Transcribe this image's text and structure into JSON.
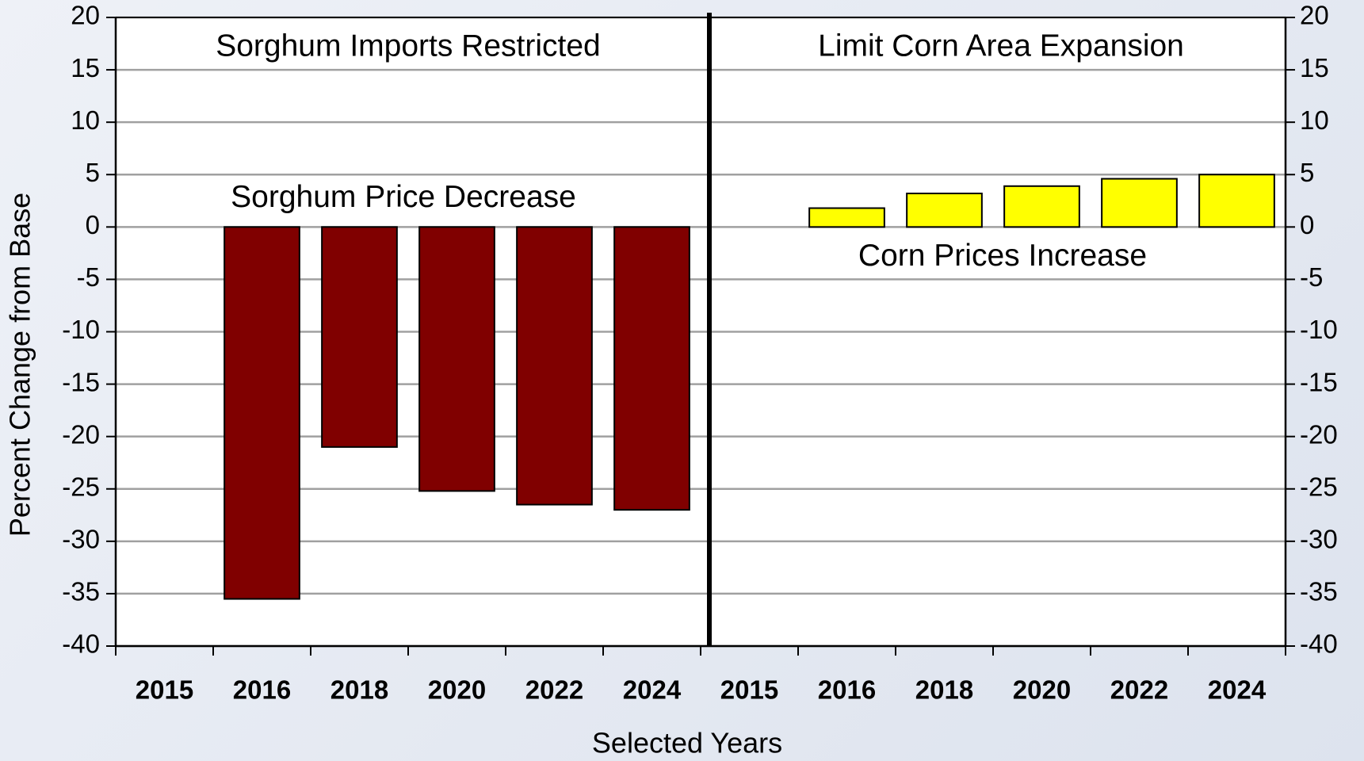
{
  "chart_data": {
    "type": "bar",
    "y_label": "Percent Change from Base",
    "x_label": "Selected Years",
    "ylim": [
      -40,
      20
    ],
    "yticks": [
      -40,
      -35,
      -30,
      -25,
      -20,
      -15,
      -10,
      -5,
      0,
      5,
      10,
      15,
      20
    ],
    "y2lim": [
      -40,
      20
    ],
    "y2ticks": [
      -40,
      -35,
      -30,
      -25,
      -20,
      -15,
      -10,
      -5,
      0,
      5,
      10,
      15,
      20
    ],
    "grid": true,
    "panels": [
      {
        "title": "Sorghum Imports Restricted",
        "annotation": "Sorghum Price Decrease",
        "color": "#800000",
        "categories": [
          "2015",
          "2016",
          "2018",
          "2020",
          "2022",
          "2024"
        ],
        "values": [
          null,
          -35.5,
          -21,
          -25.2,
          -26.5,
          -27
        ]
      },
      {
        "title": "Limit Corn Area Expansion",
        "annotation": "Corn Prices Increase",
        "color": "#ffff00",
        "categories": [
          "2015",
          "2016",
          "2018",
          "2020",
          "2022",
          "2024"
        ],
        "values": [
          null,
          1.8,
          3.2,
          3.9,
          4.6,
          5.0
        ]
      }
    ]
  }
}
